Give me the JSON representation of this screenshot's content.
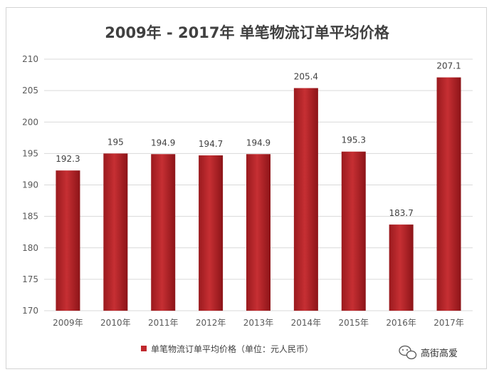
{
  "chart_data": {
    "type": "bar",
    "title": "2009年 - 2017年 单笔物流订单平均价格",
    "categories": [
      "2009年",
      "2010年",
      "2011年",
      "2012年",
      "2013年",
      "2014年",
      "2015年",
      "2016年",
      "2017年"
    ],
    "series": [
      {
        "name": "单笔物流订单平均价格（单位：元人民币）",
        "values": [
          192.3,
          195,
          194.9,
          194.7,
          194.9,
          205.4,
          195.3,
          183.7,
          207.1
        ],
        "labels": [
          "192.3",
          "195",
          "194.9",
          "194.7",
          "194.9",
          "205.4",
          "195.3",
          "183.7",
          "207.1"
        ]
      }
    ],
    "ylim": [
      170,
      210
    ],
    "yticks": [
      170,
      175,
      180,
      185,
      190,
      195,
      200,
      205,
      210
    ],
    "xlabel": "",
    "ylabel": "",
    "grid": true,
    "legend_position": "bottom",
    "colors": {
      "bar": "#c0282d",
      "bar_dark": "#8c1418",
      "grid": "#d9d9d9"
    }
  },
  "watermark": {
    "text": "高街高爱",
    "icon": "wechat-icon"
  }
}
